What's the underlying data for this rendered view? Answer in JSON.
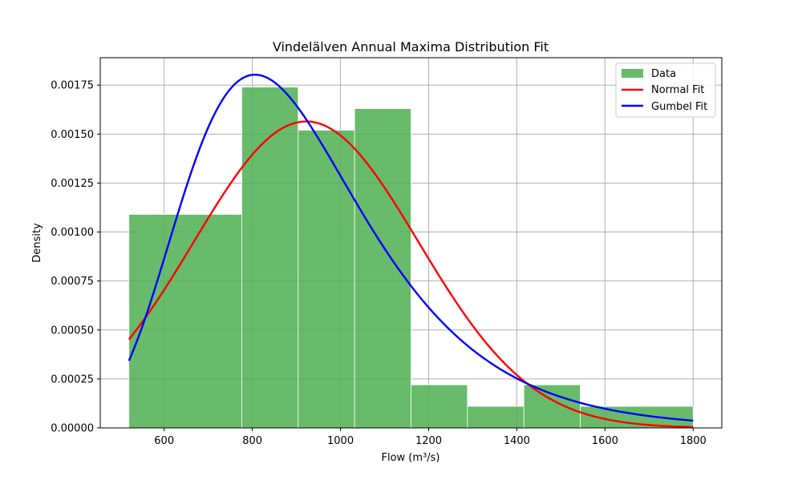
{
  "chart_data": {
    "type": "bar",
    "title": "Vindelälven Annual Maxima Distribution Fit",
    "xlabel": "Flow (m³/s)",
    "ylabel": "Density",
    "xlim": [
      455,
      1865
    ],
    "ylim": [
      0,
      0.00189
    ],
    "xticks": [
      600,
      800,
      1000,
      1200,
      1400,
      1600,
      1800
    ],
    "xtick_labels": [
      "600",
      "800",
      "1000",
      "1200",
      "1400",
      "1600",
      "1800"
    ],
    "yticks": [
      0,
      0.00025,
      0.0005,
      0.00075,
      0.001,
      0.00125,
      0.0015,
      0.00175
    ],
    "ytick_labels": [
      "0.00000",
      "0.00025",
      "0.00050",
      "0.00075",
      "0.00100",
      "0.00125",
      "0.00150",
      "0.00175"
    ],
    "grid": true,
    "legend_position": "upper right",
    "histogram": {
      "name": "Data",
      "color": "#4caf50",
      "bins": [
        {
          "x0": 520,
          "x1": 776,
          "density": 0.00109
        },
        {
          "x0": 776,
          "x1": 904,
          "density": 0.00174
        },
        {
          "x0": 904,
          "x1": 1032,
          "density": 0.00152
        },
        {
          "x0": 1032,
          "x1": 1160,
          "density": 0.00163
        },
        {
          "x0": 1160,
          "x1": 1288,
          "density": 0.00022
        },
        {
          "x0": 1288,
          "x1": 1416,
          "density": 0.00011
        },
        {
          "x0": 1416,
          "x1": 1544,
          "density": 0.00022
        },
        {
          "x0": 1544,
          "x1": 1800,
          "density": 0.00011
        }
      ]
    },
    "series": [
      {
        "name": "Normal Fit",
        "color": "#ff0000",
        "dist": "normal",
        "mu": 922,
        "sigma": 255
      },
      {
        "name": "Gumbel Fit",
        "color": "#0000ff",
        "dist": "gumbel",
        "mu": 806,
        "beta": 204
      }
    ],
    "curve_range": [
      520,
      1800
    ]
  }
}
